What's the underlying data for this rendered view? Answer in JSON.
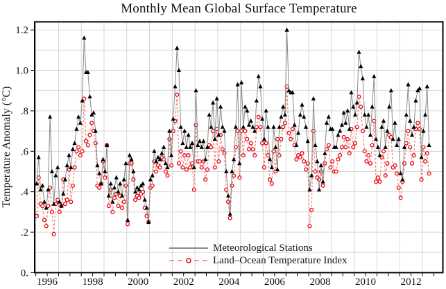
{
  "chart_data": {
    "type": "line",
    "title": "Monthly Mean Global Surface Temperature",
    "ylabel": "Temperature Anomaly (°C)",
    "xlabel": "",
    "x_start": "1996-01",
    "x_end": "2013-04",
    "x_axis_range_years": [
      1995.95,
      2013.9
    ],
    "y_axis_range": [
      0,
      1.24
    ],
    "grid": "on",
    "x_tick_label_years": [
      1996,
      1998,
      2000,
      2002,
      2004,
      2006,
      2008,
      2010,
      2012
    ],
    "y_tick_values": [
      0,
      0.2,
      0.4,
      0.6,
      0.8,
      1.0,
      1.2
    ],
    "y_tick_labels": [
      "0.",
      ".2",
      ".4",
      ".6",
      ".8",
      "1.0",
      "1.2"
    ],
    "legend_position": "inside bottom center",
    "colors": {
      "stations_line": "#8a8a8a",
      "stations_marker": "#000000",
      "loti_line": "#f2756a",
      "loti_marker": "#e8000b",
      "grid": "#d2d2d2",
      "frame": "#000000",
      "text": "#111111"
    },
    "series": [
      {
        "name": "Meteorological Stations",
        "marker": "filled-triangle-up",
        "line_style": "solid",
        "values": [
          0.44,
          0.57,
          0.41,
          0.43,
          0.35,
          0.32,
          0.41,
          0.77,
          0.5,
          0.34,
          0.48,
          0.52,
          0.35,
          0.33,
          0.39,
          0.46,
          0.53,
          0.58,
          0.52,
          0.61,
          0.64,
          0.71,
          0.77,
          0.74,
          0.85,
          1.16,
          0.99,
          0.99,
          0.87,
          0.78,
          0.79,
          0.7,
          0.53,
          0.49,
          0.44,
          0.56,
          0.5,
          0.63,
          0.38,
          0.44,
          0.35,
          0.42,
          0.47,
          0.4,
          0.44,
          0.38,
          0.46,
          0.54,
          0.26,
          0.58,
          0.56,
          0.5,
          0.4,
          0.42,
          0.41,
          0.43,
          0.44,
          0.36,
          0.32,
          0.25,
          0.46,
          0.48,
          0.6,
          0.55,
          0.57,
          0.56,
          0.59,
          0.62,
          0.54,
          0.52,
          0.7,
          0.58,
          0.76,
          0.92,
          1.11,
          1.0,
          0.72,
          0.64,
          0.7,
          0.62,
          0.68,
          0.62,
          0.64,
          0.52,
          0.9,
          0.63,
          0.65,
          0.62,
          0.65,
          0.56,
          0.62,
          0.78,
          0.72,
          0.84,
          0.66,
          0.86,
          0.68,
          0.82,
          0.72,
          0.7,
          0.5,
          0.38,
          0.29,
          0.5,
          0.56,
          0.72,
          0.93,
          0.54,
          0.94,
          0.72,
          0.82,
          0.8,
          0.73,
          0.75,
          0.72,
          0.7,
          0.85,
          0.97,
          0.92,
          0.76,
          0.66,
          0.8,
          0.72,
          0.56,
          0.52,
          0.72,
          0.62,
          0.51,
          0.72,
          0.77,
          0.82,
          0.78,
          1.2,
          0.9,
          0.89,
          0.89,
          0.73,
          0.63,
          0.69,
          0.78,
          0.83,
          0.77,
          0.72,
          0.65,
          0.41,
          0.48,
          0.86,
          0.63,
          0.55,
          0.41,
          0.53,
          0.45,
          0.59,
          0.74,
          0.77,
          0.71,
          0.71,
          0.62,
          0.62,
          0.68,
          0.7,
          0.73,
          0.79,
          0.74,
          0.8,
          0.71,
          0.89,
          0.82,
          0.78,
          0.84,
          1.09,
          1.02,
          0.96,
          0.78,
          0.72,
          0.78,
          0.68,
          0.82,
          0.97,
          0.66,
          0.62,
          0.58,
          0.72,
          0.75,
          0.62,
          0.7,
          0.82,
          0.9,
          0.66,
          0.74,
          0.63,
          0.66,
          0.49,
          0.46,
          0.62,
          0.78,
          0.93,
          0.75,
          0.68,
          0.72,
          0.85,
          0.9,
          0.91,
          0.57,
          0.7,
          0.78,
          0.92,
          0.63
        ]
      },
      {
        "name": "Land–Ocean Temperature Index",
        "marker": "open-circle",
        "line_style": "dashed",
        "values": [
          0.28,
          0.47,
          0.34,
          0.33,
          0.26,
          0.23,
          0.33,
          0.42,
          0.3,
          0.19,
          0.34,
          0.36,
          0.3,
          0.33,
          0.46,
          0.34,
          0.36,
          0.51,
          0.35,
          0.43,
          0.52,
          0.6,
          0.62,
          0.58,
          0.6,
          0.86,
          0.65,
          0.63,
          0.68,
          0.74,
          0.7,
          0.64,
          0.43,
          0.42,
          0.44,
          0.55,
          0.47,
          0.63,
          0.33,
          0.41,
          0.3,
          0.37,
          0.39,
          0.33,
          0.38,
          0.32,
          0.35,
          0.43,
          0.24,
          0.54,
          0.54,
          0.46,
          0.36,
          0.38,
          0.37,
          0.39,
          0.4,
          0.32,
          0.28,
          0.25,
          0.42,
          0.43,
          0.55,
          0.5,
          0.53,
          0.52,
          0.57,
          0.56,
          0.5,
          0.48,
          0.66,
          0.53,
          0.7,
          0.75,
          0.88,
          0.54,
          0.6,
          0.52,
          0.58,
          0.51,
          0.58,
          0.52,
          0.54,
          0.41,
          0.73,
          0.55,
          0.55,
          0.52,
          0.55,
          0.46,
          0.51,
          0.63,
          0.62,
          0.7,
          0.52,
          0.71,
          0.55,
          0.68,
          0.61,
          0.59,
          0.41,
          0.35,
          0.27,
          0.43,
          0.48,
          0.62,
          0.7,
          0.47,
          0.7,
          0.58,
          0.7,
          0.66,
          0.61,
          0.64,
          0.61,
          0.58,
          0.72,
          0.77,
          0.72,
          0.64,
          0.52,
          0.64,
          0.58,
          0.46,
          0.44,
          0.6,
          0.5,
          0.66,
          0.58,
          0.66,
          0.72,
          0.74,
          0.92,
          0.69,
          0.66,
          0.71,
          0.63,
          0.56,
          0.58,
          0.57,
          0.59,
          0.55,
          0.51,
          0.54,
          0.23,
          0.31,
          0.7,
          0.5,
          0.47,
          0.46,
          0.5,
          0.43,
          0.54,
          0.61,
          0.63,
          0.52,
          0.55,
          0.5,
          0.5,
          0.56,
          0.58,
          0.62,
          0.67,
          0.62,
          0.66,
          0.59,
          0.71,
          0.62,
          0.64,
          0.72,
          0.87,
          0.82,
          0.7,
          0.6,
          0.55,
          0.58,
          0.54,
          0.63,
          0.75,
          0.45,
          0.47,
          0.45,
          0.57,
          0.6,
          0.48,
          0.54,
          0.68,
          0.67,
          0.52,
          0.53,
          0.49,
          0.42,
          0.37,
          0.45,
          0.54,
          0.64,
          0.7,
          0.62,
          0.54,
          0.58,
          0.71,
          0.74,
          0.71,
          0.46,
          0.62,
          0.55,
          0.59,
          0.49
        ]
      }
    ]
  }
}
